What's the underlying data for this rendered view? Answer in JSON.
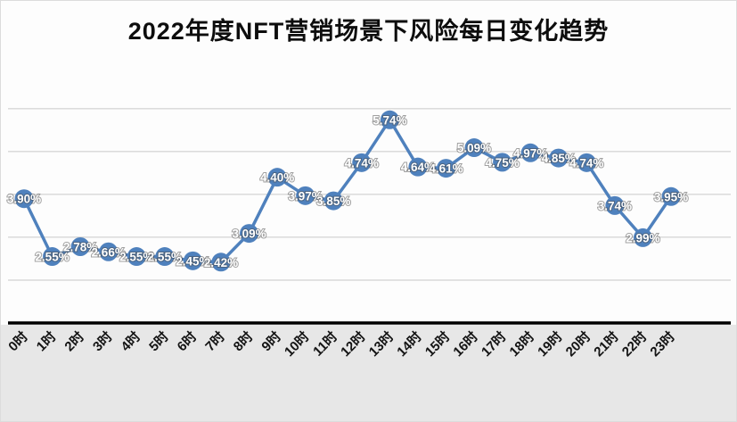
{
  "chart_data": {
    "type": "line",
    "title": "2022年度NFT营销场景下风险每日变化趋势",
    "categories": [
      "0时",
      "1时",
      "2时",
      "3时",
      "4时",
      "5时",
      "6时",
      "7时",
      "8时",
      "9时",
      "10时",
      "11时",
      "12时",
      "13时",
      "14时",
      "15时",
      "16时",
      "17时",
      "18时",
      "19时",
      "20时",
      "21时",
      "22时",
      "23时"
    ],
    "values": [
      3.9,
      2.55,
      2.78,
      2.66,
      2.55,
      2.55,
      2.45,
      2.42,
      3.09,
      4.4,
      3.97,
      3.85,
      4.74,
      5.74,
      4.64,
      4.61,
      5.09,
      4.75,
      4.97,
      4.85,
      4.74,
      3.74,
      2.99,
      3.95
    ],
    "labels": [
      "3.90%",
      "2.55%",
      "2.78%",
      "2.66%",
      "2.55%",
      "2.55%",
      "2.45%",
      "2.42%",
      "3.09%",
      "4.40%",
      "3.97%",
      "3.85%",
      "4.74%",
      "5.74%",
      "4.64%",
      "4.61%",
      "5.09%",
      "4.75%",
      "4.97%",
      "4.85%",
      "4.74%",
      "3.74%",
      "2.99%",
      "3.95%"
    ],
    "xlabel": "",
    "ylabel": "",
    "ylim": [
      1.0,
      6.6
    ],
    "grid": true,
    "legend": "none",
    "series_color": "#4f81bd",
    "label_color": "#ffffff",
    "axis_color": "#000000"
  }
}
